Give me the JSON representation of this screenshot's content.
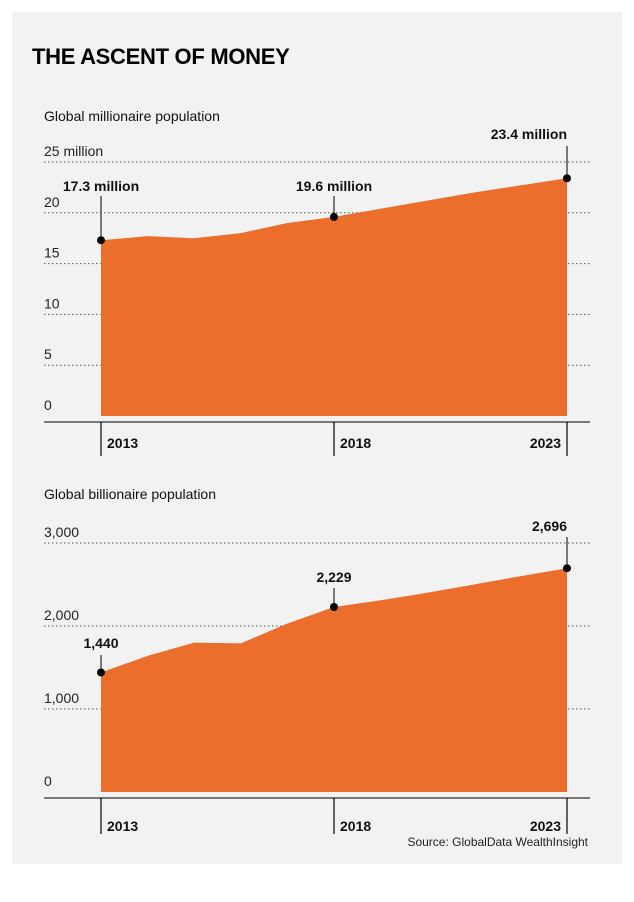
{
  "title": "THE ASCENT OF MONEY",
  "source": "Source: GlobalData WealthInsight",
  "colors": {
    "area": "#ec6e2d",
    "background": "#f2f2f2",
    "text": "#111111",
    "grid": "#555555"
  },
  "chart_data": [
    {
      "type": "area",
      "subtitle": "Global millionaire population",
      "unit": "million",
      "x": [
        2013,
        2014,
        2015,
        2016,
        2017,
        2018,
        2019,
        2020,
        2021,
        2022,
        2023
      ],
      "values": [
        17.3,
        17.7,
        17.5,
        18.0,
        19.0,
        19.6,
        20.4,
        21.2,
        22.0,
        22.7,
        23.4
      ],
      "ylim": [
        0,
        25
      ],
      "yticks": [
        0,
        5,
        10,
        15,
        20,
        25
      ],
      "ytick_labels": [
        "0",
        "5",
        "10",
        "15",
        "20",
        "25 million"
      ],
      "xticks": [
        2013,
        2018,
        2023
      ],
      "xtick_labels": [
        "2013",
        "2018",
        "2023"
      ],
      "grid": "horizontal dotted",
      "annotations": [
        {
          "x": 2013,
          "y": 17.3,
          "label": "17.3 million"
        },
        {
          "x": 2018,
          "y": 19.6,
          "label": "19.6 million"
        },
        {
          "x": 2023,
          "y": 23.4,
          "label": "23.4 million"
        }
      ]
    },
    {
      "type": "area",
      "subtitle": "Global billionaire population",
      "x": [
        2013,
        2014,
        2015,
        2016,
        2017,
        2018,
        2019,
        2020,
        2021,
        2022,
        2023
      ],
      "values": [
        1440,
        1640,
        1800,
        1790,
        2030,
        2229,
        2310,
        2400,
        2500,
        2600,
        2696
      ],
      "ylim": [
        0,
        3000
      ],
      "yticks": [
        0,
        1000,
        2000,
        3000
      ],
      "ytick_labels": [
        "0",
        "1,000",
        "2,000",
        "3,000"
      ],
      "xticks": [
        2013,
        2018,
        2023
      ],
      "xtick_labels": [
        "2013",
        "2018",
        "2023"
      ],
      "grid": "horizontal dotted",
      "annotations": [
        {
          "x": 2013,
          "y": 1440,
          "label": "1,440"
        },
        {
          "x": 2018,
          "y": 2229,
          "label": "2,229"
        },
        {
          "x": 2023,
          "y": 2696,
          "label": "2,696"
        }
      ]
    }
  ]
}
